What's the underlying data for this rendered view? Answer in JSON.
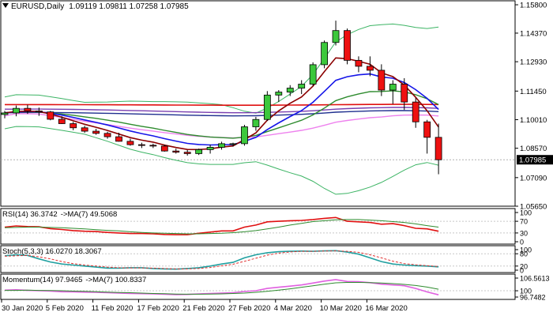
{
  "header": {
    "symbol": "EURUSD,Daily",
    "ohlc": "1.09119 1.09811 1.07258 1.07985"
  },
  "price_axis": {
    "ticks": [
      "1.15800",
      "1.14370",
      "1.12930",
      "1.11450",
      "1.10010",
      "1.08570",
      "1.07090",
      "1.05650"
    ],
    "current": "1.07985"
  },
  "rsi": {
    "label": "RSI(14) 36.3742",
    "ma_label": "->MA(7) 49.5068",
    "ticks": [
      "100",
      "70",
      "30",
      "0"
    ]
  },
  "stoch": {
    "label": "Stoch(5,3,3) 16.0270 18.3067",
    "ticks": [
      "100",
      "80",
      "20",
      "0"
    ]
  },
  "momentum": {
    "label": "Momentum(14) 97.9465",
    "ma_label": "->MA(7) 100.8337",
    "ticks": [
      "106.5613",
      "100",
      "96.7482"
    ]
  },
  "time_axis": {
    "labels": [
      "30 Jan 2020",
      "5 Feb 2020",
      "11 Feb 2020",
      "17 Feb 2020",
      "21 Feb 2020",
      "27 Feb 2020",
      "4 Mar 2020",
      "10 Mar 2020",
      "16 Mar 2020"
    ]
  },
  "colors": {
    "bull": "#3cc83c",
    "bear": "#ee1111",
    "ma_blue": "#1515e8",
    "ma_darkred": "#8b0000",
    "ma_green": "#2e8b2e",
    "bb_green": "#3cb464",
    "line_red": "#e01010",
    "line_magenta": "#ee82ee",
    "line_purple": "#7a3fb0",
    "line_navy": "#1f2f8f",
    "rsi_red": "#e01010",
    "rsi_ma": "#2e8b2e",
    "stoch_main": "#20a0a0",
    "stoch_signal": "#e03030",
    "mom_main": "#e060e0",
    "mom_ma": "#2e8b2e"
  },
  "chart_data": [
    {
      "type": "candlestick",
      "title": "EURUSD,Daily",
      "ylim": [
        1.0565,
        1.16
      ],
      "series": [
        {
          "name": "price",
          "ohlc": [
            [
              1.1027,
              1.1045,
              1.1008,
              1.1035
            ],
            [
              1.1035,
              1.1072,
              1.1018,
              1.1058
            ],
            [
              1.1058,
              1.1076,
              1.103,
              1.1045
            ],
            [
              1.1045,
              1.1062,
              1.102,
              1.104
            ],
            [
              1.104,
              1.1045,
              1.0998,
              1.1003
            ],
            [
              1.1003,
              1.1018,
              1.0979,
              1.0981
            ],
            [
              1.0981,
              1.099,
              1.0948,
              1.096
            ],
            [
              1.096,
              1.097,
              1.0935,
              1.0943
            ],
            [
              1.0943,
              1.0955,
              1.0925,
              1.0932
            ],
            [
              1.0932,
              1.094,
              1.0905,
              1.0915
            ],
            [
              1.0915,
              1.0935,
              1.089,
              1.0892
            ],
            [
              1.0892,
              1.0905,
              1.087,
              1.0875
            ],
            [
              1.0875,
              1.0885,
              1.0858,
              1.0872
            ],
            [
              1.0872,
              1.088,
              1.0858,
              1.0868
            ],
            [
              1.0868,
              1.0875,
              1.084,
              1.0843
            ],
            [
              1.0843,
              1.0855,
              1.083,
              1.0837
            ],
            [
              1.0837,
              1.0848,
              1.082,
              1.083
            ],
            [
              1.083,
              1.0855,
              1.0823,
              1.085
            ],
            [
              1.085,
              1.0875,
              1.083,
              1.0862
            ],
            [
              1.0862,
              1.089,
              1.085,
              1.088
            ],
            [
              1.088,
              1.0885,
              1.0865,
              1.088
            ],
            [
              1.088,
              1.0975,
              1.087,
              1.0965
            ],
            [
              1.0965,
              1.1015,
              1.0945,
              1.1002
            ],
            [
              1.1002,
              1.1145,
              1.0995,
              1.1125
            ],
            [
              1.1125,
              1.115,
              1.109,
              1.114
            ],
            [
              1.114,
              1.1175,
              1.112,
              1.116
            ],
            [
              1.116,
              1.12,
              1.113,
              1.118
            ],
            [
              1.118,
              1.129,
              1.117,
              1.1278
            ],
            [
              1.1278,
              1.14,
              1.126,
              1.139
            ],
            [
              1.139,
              1.15,
              1.1375,
              1.145
            ],
            [
              1.145,
              1.146,
              1.128,
              1.13
            ],
            [
              1.13,
              1.132,
              1.124,
              1.127
            ],
            [
              1.127,
              1.132,
              1.122,
              1.125
            ],
            [
              1.125,
              1.128,
              1.112,
              1.115
            ],
            [
              1.115,
              1.12,
              1.108,
              1.118
            ],
            [
              1.118,
              1.121,
              1.105,
              1.109
            ],
            [
              1.109,
              1.111,
              1.096,
              1.099
            ],
            [
              1.099,
              1.1,
              1.083,
              1.0912
            ],
            [
              1.0912,
              1.0981,
              1.0726,
              1.0799
            ]
          ]
        }
      ]
    },
    {
      "type": "line",
      "title": "RSI(14) 36.3742",
      "ylim": [
        0,
        100
      ],
      "series": [
        {
          "name": "RSI(14)",
          "values": [
            50,
            54,
            52,
            51,
            45,
            42,
            38,
            36,
            35,
            32,
            30,
            28,
            28,
            27,
            25,
            24,
            24,
            29,
            33,
            37,
            37,
            50,
            57,
            68,
            70,
            72,
            73,
            76,
            80,
            83,
            70,
            68,
            66,
            60,
            62,
            55,
            46,
            44,
            36
          ]
        },
        {
          "name": "MA(7)",
          "values": [
            48,
            49,
            50,
            50,
            49,
            48,
            46,
            44,
            41,
            39,
            37,
            34,
            32,
            30,
            29,
            28,
            27,
            27,
            28,
            29,
            31,
            34,
            38,
            44,
            50,
            57,
            63,
            69,
            72,
            75,
            76,
            76,
            74,
            72,
            69,
            66,
            61,
            55,
            50
          ]
        }
      ]
    },
    {
      "type": "line",
      "title": "Stoch(5,3,3) 16.0270 18.3067",
      "ylim": [
        0,
        100
      ],
      "series": [
        {
          "name": "main",
          "values": [
            70,
            75,
            72,
            55,
            40,
            30,
            25,
            20,
            15,
            10,
            10,
            12,
            12,
            8,
            6,
            5,
            8,
            12,
            20,
            30,
            38,
            60,
            75,
            85,
            90,
            92,
            93,
            92,
            94,
            95,
            88,
            78,
            60,
            42,
            30,
            25,
            22,
            20,
            16
          ]
        },
        {
          "name": "signal",
          "values": [
            68,
            70,
            72,
            65,
            55,
            42,
            32,
            25,
            20,
            15,
            12,
            11,
            11,
            10,
            8,
            6,
            6,
            8,
            13,
            21,
            29,
            43,
            58,
            73,
            83,
            89,
            92,
            92,
            93,
            94,
            92,
            87,
            75,
            60,
            44,
            32,
            26,
            22,
            18
          ]
        }
      ]
    },
    {
      "type": "line",
      "title": "Momentum(14) 97.9465",
      "ylim": [
        96.7482,
        106.5613
      ],
      "series": [
        {
          "name": "Momentum(14)",
          "values": [
            100.3,
            100.5,
            100.2,
            100.0,
            99.8,
            99.5,
            99.4,
            99.3,
            99.2,
            99.0,
            98.8,
            98.6,
            98.5,
            98.4,
            98.2,
            98.0,
            98.1,
            98.4,
            98.6,
            98.8,
            99.0,
            99.6,
            100.0,
            101.2,
            101.8,
            102.4,
            103.0,
            104.0,
            105.0,
            105.8,
            104.8,
            104.7,
            104.2,
            103.4,
            103.0,
            102.6,
            101.2,
            99.4,
            97.9
          ]
        },
        {
          "name": "MA(7)",
          "values": [
            100.2,
            100.2,
            100.3,
            100.2,
            100.1,
            100.0,
            99.8,
            99.7,
            99.5,
            99.3,
            99.1,
            99.0,
            98.8,
            98.6,
            98.5,
            98.3,
            98.2,
            98.2,
            98.3,
            98.4,
            98.6,
            98.8,
            99.2,
            99.7,
            100.3,
            101.0,
            101.8,
            102.6,
            103.4,
            104.1,
            104.3,
            104.3,
            104.2,
            104.0,
            103.7,
            103.3,
            102.7,
            101.9,
            100.8
          ]
        }
      ]
    }
  ]
}
